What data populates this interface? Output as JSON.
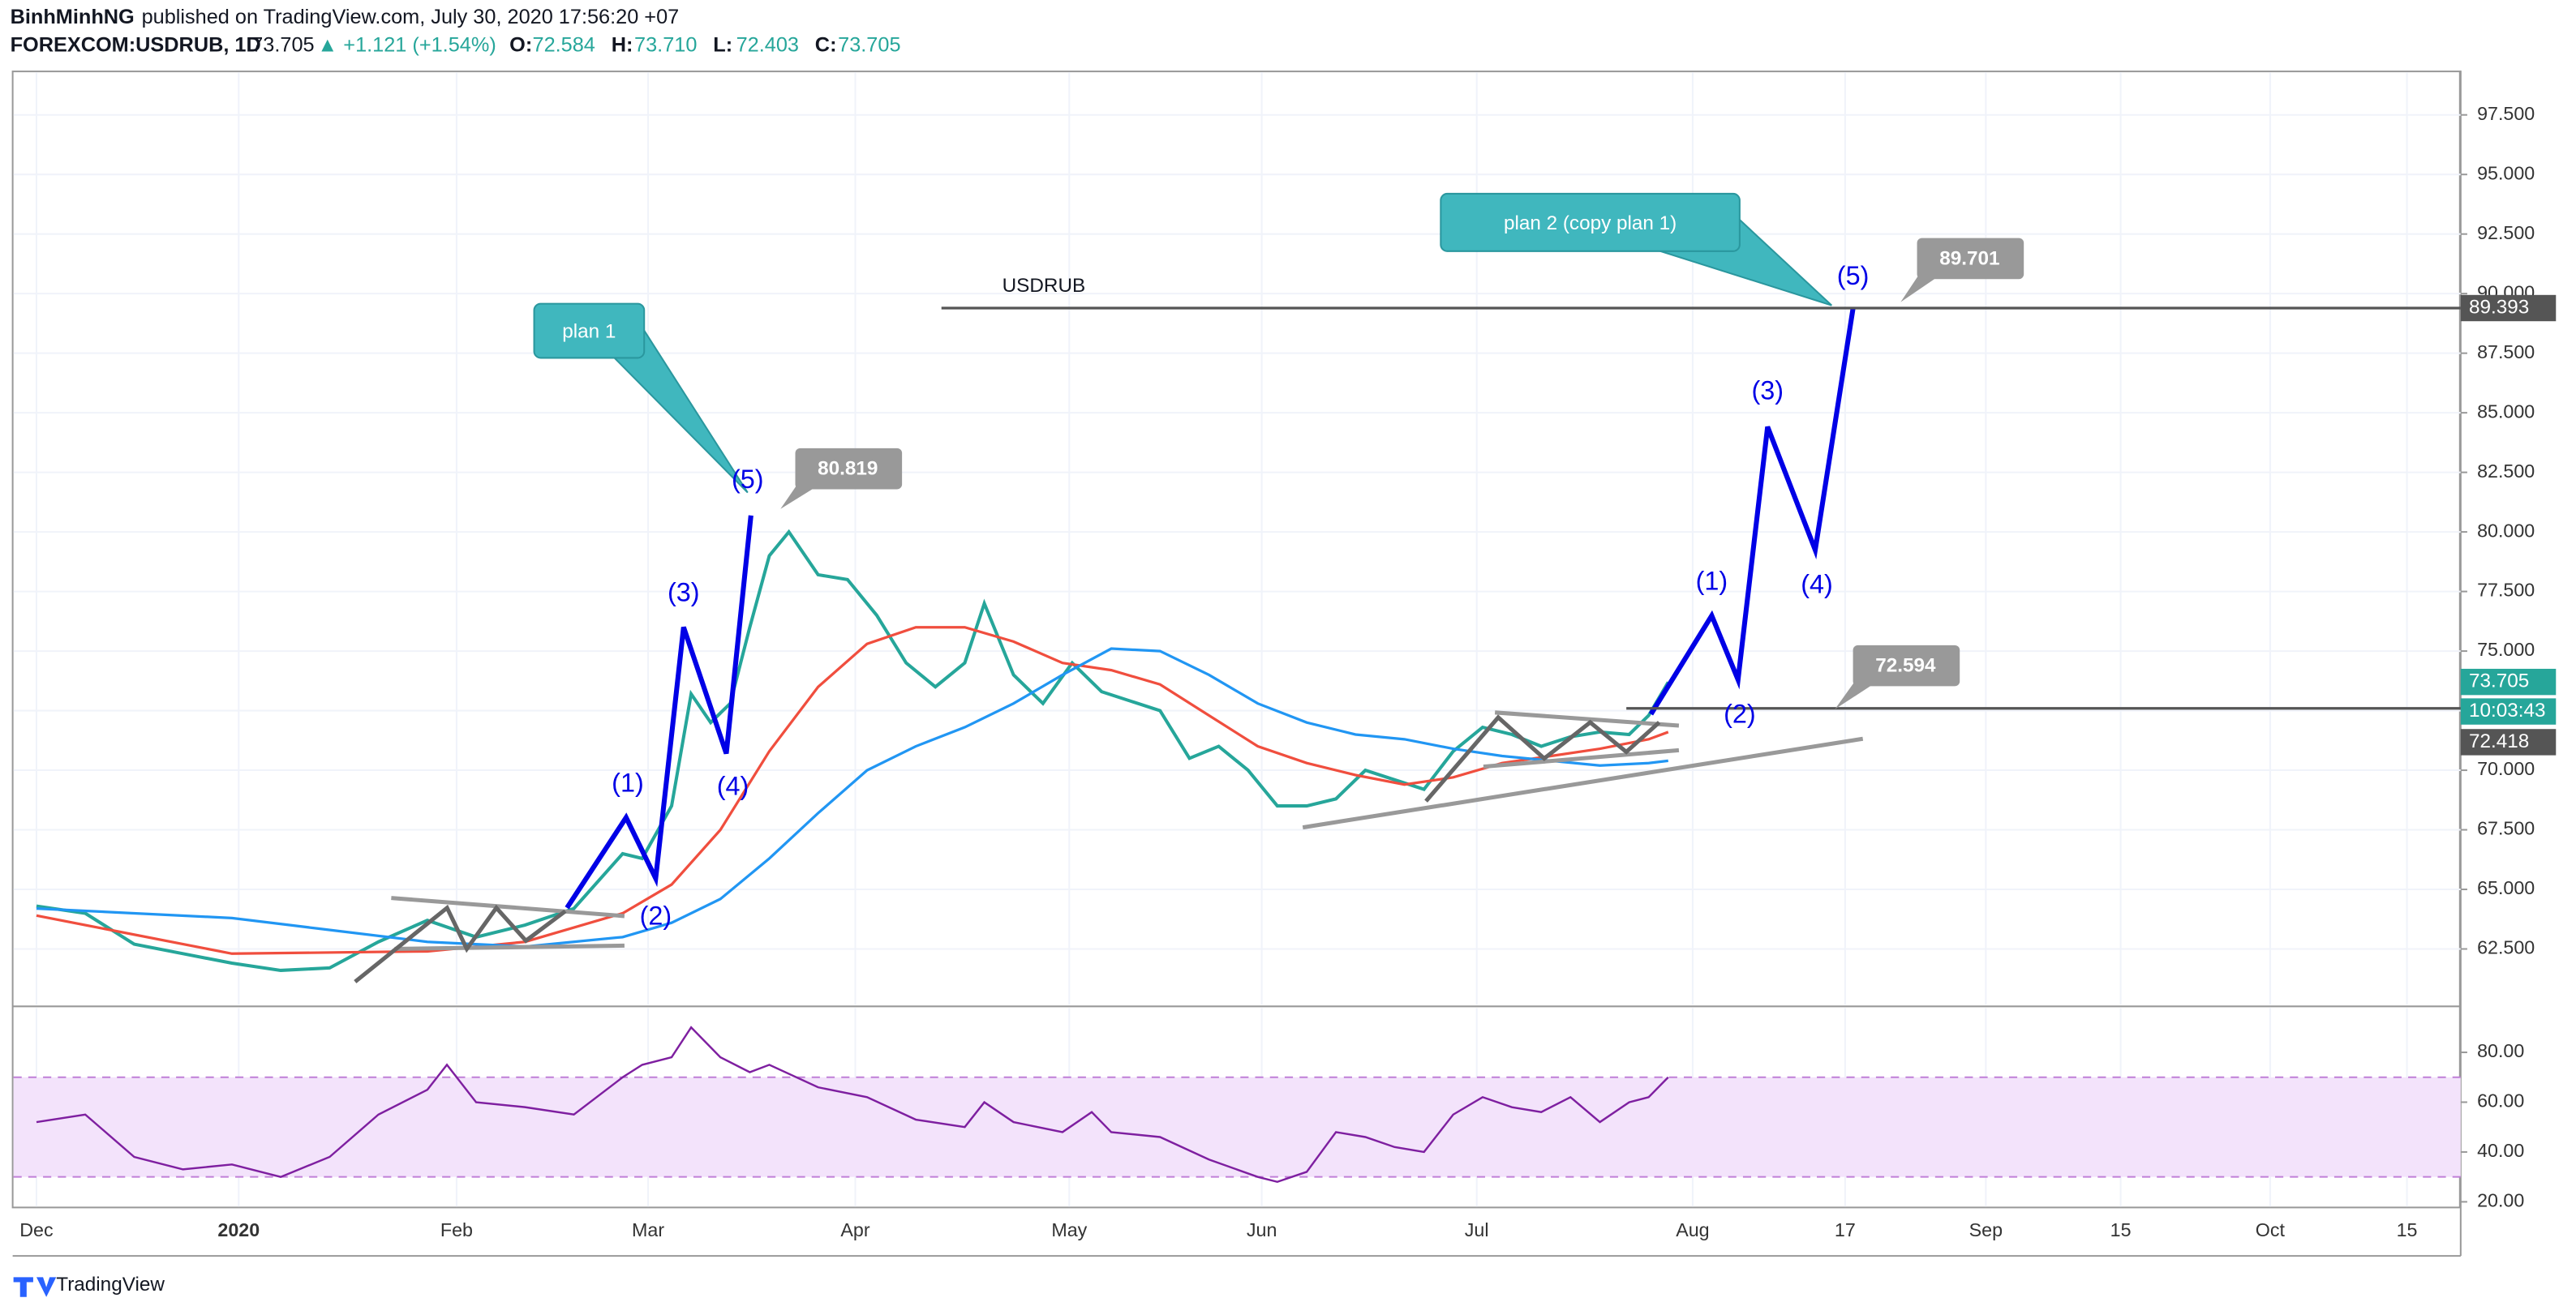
{
  "header": {
    "author": "BinhMinhNG",
    "published": "published on TradingView.com, July 30, 2020 17:56:20 +07",
    "symbol": "FOREXCOM:USDRUB, 1D",
    "last": "73.705",
    "change": "▲ +1.121 (+1.54%)",
    "ohlc": [
      {
        "label": "O:",
        "value": "72.584"
      },
      {
        "label": "H:",
        "value": "73.710"
      },
      {
        "label": "L:",
        "value": "72.403"
      },
      {
        "label": "C:",
        "value": "73.705"
      }
    ]
  },
  "chart_data": [
    {
      "type": "line",
      "title": "USDRUB",
      "xlim": [
        -2.35,
        248.1
      ],
      "xticks": [
        {
          "value": 0,
          "label": "Dec"
        },
        {
          "value": 20.7,
          "label": "2020"
        },
        {
          "value": 43,
          "label": "Feb"
        },
        {
          "value": 62.6,
          "label": "Mar"
        },
        {
          "value": 83.8,
          "label": "Apr"
        },
        {
          "value": 105.7,
          "label": "May"
        },
        {
          "value": 125.4,
          "label": "Jun"
        },
        {
          "value": 147.4,
          "label": "Jul"
        },
        {
          "value": 169.5,
          "label": "Aug"
        },
        {
          "value": 185.1,
          "label": "17"
        },
        {
          "value": 199.5,
          "label": "Sep"
        },
        {
          "value": 213.3,
          "label": "15"
        },
        {
          "value": 228.6,
          "label": "Oct"
        },
        {
          "value": 242.6,
          "label": "15"
        }
      ],
      "ylim": [
        60.16,
        99.29
      ],
      "yticks": [
        {
          "value": 62.5,
          "label": "62.500"
        },
        {
          "value": 65,
          "label": "65.000"
        },
        {
          "value": 67.5,
          "label": "67.500"
        },
        {
          "value": 70,
          "label": "70.000"
        },
        {
          "value": 72.5,
          "label": "72.500"
        },
        {
          "value": 75,
          "label": "75.000"
        },
        {
          "value": 77.5,
          "label": "77.500"
        },
        {
          "value": 80,
          "label": "80.000"
        },
        {
          "value": 82.5,
          "label": "82.500"
        },
        {
          "value": 85,
          "label": "85.000"
        },
        {
          "value": 87.5,
          "label": "87.500"
        },
        {
          "value": 90,
          "label": "90.000"
        },
        {
          "value": 92.5,
          "label": "92.500"
        },
        {
          "value": 95,
          "label": "95.000"
        },
        {
          "value": 97.5,
          "label": "97.500"
        }
      ],
      "grid": true,
      "series": [
        {
          "color": "#26a69a",
          "x": [
            0,
            5,
            10,
            15,
            20,
            25,
            30,
            35,
            40,
            45,
            50,
            55,
            60,
            62,
            65,
            67,
            69,
            71,
            73,
            75,
            77,
            80,
            83,
            86,
            89,
            92,
            95,
            97,
            100,
            103,
            106,
            109,
            112,
            115,
            118,
            121,
            124,
            127,
            130,
            133,
            136,
            139,
            142,
            145,
            148,
            151,
            154,
            157,
            160,
            163,
            165,
            167
          ],
          "values": [
            64.3,
            64.0,
            62.7,
            62.3,
            61.9,
            61.6,
            61.7,
            62.8,
            63.7,
            63.0,
            63.5,
            64.2,
            66.5,
            66.3,
            68.5,
            73.2,
            72.0,
            72.8,
            76.0,
            79.0,
            80.0,
            78.2,
            78.0,
            76.5,
            74.5,
            73.5,
            74.5,
            77.0,
            74.0,
            72.8,
            74.5,
            73.3,
            72.9,
            72.5,
            70.5,
            71.0,
            70.0,
            68.5,
            68.5,
            68.8,
            70.0,
            69.6,
            69.2,
            70.8,
            71.8,
            71.5,
            71.0,
            71.4,
            71.6,
            71.5,
            72.3,
            73.7
          ]
        },
        {
          "color": "#f04e3e",
          "x": [
            0,
            20,
            40,
            50,
            60,
            65,
            70,
            75,
            80,
            85,
            90,
            95,
            100,
            105,
            110,
            115,
            120,
            125,
            130,
            135,
            140,
            145,
            150,
            155,
            160,
            165,
            167
          ],
          "values": [
            63.9,
            62.3,
            62.4,
            62.8,
            64.0,
            65.2,
            67.5,
            70.8,
            73.5,
            75.3,
            76.0,
            76.0,
            75.4,
            74.5,
            74.2,
            73.6,
            72.3,
            71.0,
            70.3,
            69.8,
            69.4,
            69.7,
            70.3,
            70.6,
            70.9,
            71.3,
            71.6
          ]
        },
        {
          "color": "#2196f3",
          "x": [
            0,
            20,
            40,
            50,
            60,
            65,
            70,
            75,
            80,
            85,
            90,
            95,
            100,
            105,
            110,
            115,
            120,
            125,
            130,
            135,
            140,
            145,
            150,
            155,
            160,
            165,
            167
          ],
          "values": [
            64.2,
            63.8,
            62.8,
            62.6,
            63.0,
            63.6,
            64.6,
            66.3,
            68.2,
            70.0,
            71.0,
            71.8,
            72.8,
            74.0,
            75.1,
            75.0,
            74.0,
            72.8,
            72.0,
            71.5,
            71.3,
            70.9,
            70.6,
            70.4,
            70.2,
            70.3,
            70.4
          ]
        }
      ],
      "levels": [
        89.393,
        72.594
      ],
      "axis_labels": {
        "level_high": 89.393,
        "last": 73.705,
        "countdown": "10:03:43",
        "low": 72.418
      },
      "callouts": [
        80.819,
        89.701,
        72.594
      ],
      "plans": [
        {
          "label": "plan 1",
          "waves": [
            "(1)",
            "(2)",
            "(3)",
            "(4)",
            "(5)"
          ]
        },
        {
          "label": "plan 2 (copy plan 1)",
          "waves": [
            "(1)",
            "(2)",
            "(3)",
            "(4)",
            "(5)"
          ]
        }
      ]
    },
    {
      "type": "line",
      "ylim": [
        17.4,
        97.8
      ],
      "yticks": [
        {
          "value": 20,
          "label": "20.00"
        },
        {
          "value": 40,
          "label": "40.00"
        },
        {
          "value": 60,
          "label": "60.00"
        },
        {
          "value": 80,
          "label": "80.00"
        }
      ],
      "bands": [
        30,
        70
      ],
      "series": [
        {
          "color": "#7e1fa0",
          "x": [
            0,
            5,
            10,
            15,
            20,
            25,
            30,
            35,
            40,
            42,
            45,
            50,
            55,
            60,
            62,
            65,
            67,
            70,
            73,
            75,
            80,
            85,
            90,
            95,
            97,
            100,
            105,
            108,
            110,
            115,
            120,
            125,
            127,
            130,
            133,
            136,
            139,
            142,
            145,
            148,
            151,
            154,
            157,
            160,
            163,
            165,
            167
          ],
          "values": [
            52,
            55,
            38,
            33,
            35,
            30,
            38,
            55,
            65,
            75,
            60,
            58,
            55,
            70,
            75,
            78,
            90,
            78,
            72,
            75,
            66,
            62,
            53,
            50,
            60,
            52,
            48,
            56,
            48,
            46,
            37,
            30,
            28,
            32,
            48,
            46,
            42,
            40,
            55,
            62,
            58,
            56,
            62,
            52,
            60,
            62,
            70
          ]
        }
      ]
    }
  ],
  "footer": "TradingView"
}
